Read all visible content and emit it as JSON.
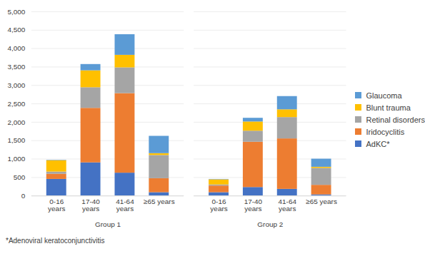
{
  "chart_data": {
    "type": "bar",
    "stacked": true,
    "grid": true,
    "legend": "right",
    "caption": "*Adenoviral keratoconjunctivitis",
    "categories": [
      "0-16 years",
      "17-40 years",
      "41-64 years",
      "≥65 years",
      "0-16 years",
      "17-40 years",
      "41-64 years",
      "≥65 years"
    ],
    "category_groups": [
      "Group 1",
      "Group 1",
      "Group 1",
      "Group 1",
      "Group 2",
      "Group 2",
      "Group 2",
      "Group 2"
    ],
    "ylim": [
      0,
      5000
    ],
    "yticks": [
      0,
      500,
      1000,
      1500,
      2000,
      2500,
      3000,
      3500,
      4000,
      4500,
      5000
    ],
    "series": [
      {
        "name": "AdKC*",
        "color": "#4472c4",
        "values": [
          450,
          900,
          620,
          90,
          90,
          230,
          180,
          30
        ]
      },
      {
        "name": "Iridocyclitis",
        "color": "#ed7d31",
        "values": [
          140,
          1480,
          2160,
          380,
          180,
          1230,
          1370,
          260
        ]
      },
      {
        "name": "Retinal disorders",
        "color": "#a5a5a5",
        "values": [
          60,
          560,
          700,
          630,
          30,
          300,
          580,
          460
        ]
      },
      {
        "name": "Blunt trauma",
        "color": "#ffc000",
        "values": [
          310,
          460,
          340,
          50,
          140,
          250,
          210,
          30
        ]
      },
      {
        "name": "Glaucoma",
        "color": "#5b9bd5",
        "values": [
          10,
          170,
          560,
          470,
          10,
          100,
          360,
          220
        ]
      }
    ]
  }
}
